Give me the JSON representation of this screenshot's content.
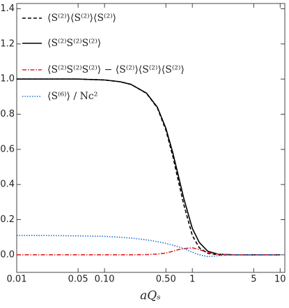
{
  "chart_data": {
    "type": "line",
    "x_label": "aQₛ",
    "x": [
      0.01,
      0.02,
      0.05,
      0.1,
      0.15,
      0.2,
      0.3,
      0.4,
      0.5,
      0.6,
      0.7,
      0.8,
      1,
      1.2,
      1.5,
      2,
      3,
      5,
      10
    ],
    "series": [
      {
        "name": "⟨S⁽²⁾⟩⟨S⁽²⁾⟩⟨S⁽²⁾⟩",
        "color": "#000000",
        "style": "dashed",
        "values": [
          1.0,
          1.0,
          1.0,
          0.995,
          0.985,
          0.97,
          0.919,
          0.836,
          0.71,
          0.56,
          0.41,
          0.285,
          0.11,
          0.04,
          0.008,
          0.0,
          0,
          0,
          0
        ]
      },
      {
        "name": "⟨S⁽²⁾S⁽²⁾S⁽²⁾⟩",
        "color": "#000000",
        "style": "solid",
        "values": [
          1.0,
          1.0,
          1.0,
          0.995,
          0.985,
          0.97,
          0.92,
          0.84,
          0.72,
          0.58,
          0.44,
          0.32,
          0.15,
          0.07,
          0.02,
          0.003,
          0,
          0,
          0
        ]
      },
      {
        "name": "⟨S⁽²⁾S⁽²⁾S⁽²⁾⟩ − ⟨S⁽²⁾⟩⟨S⁽²⁾⟩⟨S⁽²⁾⟩",
        "color": "#e0202a",
        "style": "dashdot",
        "values": [
          0,
          0,
          0,
          0,
          0,
          0,
          0.001,
          0.004,
          0.01,
          0.02,
          0.03,
          0.035,
          0.04,
          0.03,
          0.012,
          0.003,
          0,
          0,
          0
        ]
      },
      {
        "name": "⟨S⁽⁶⁾⟩ / Nc²",
        "color": "#1f6fd0",
        "style": "dotted",
        "values": [
          0.11,
          0.11,
          0.108,
          0.105,
          0.1,
          0.095,
          0.085,
          0.075,
          0.065,
          0.055,
          0.045,
          0.035,
          0.015,
          0.0,
          -0.01,
          -0.005,
          0,
          0,
          0
        ]
      }
    ],
    "xscale": "log",
    "xlim": [
      0.01,
      11.3
    ],
    "xticks": [
      0.01,
      0.05,
      {
        "value": 0.1,
        "label": "0.10"
      },
      {
        "value": 0.5,
        "label": "0.50"
      },
      1,
      5,
      10
    ],
    "ylim": [
      -0.1,
      1.43
    ],
    "yticks": [
      {
        "value": 0,
        "label": "0.0"
      },
      0.2,
      0.4,
      0.6,
      0.8,
      {
        "value": 1,
        "label": "1.0"
      },
      1.2,
      1.4
    ],
    "legend": "upper left"
  }
}
